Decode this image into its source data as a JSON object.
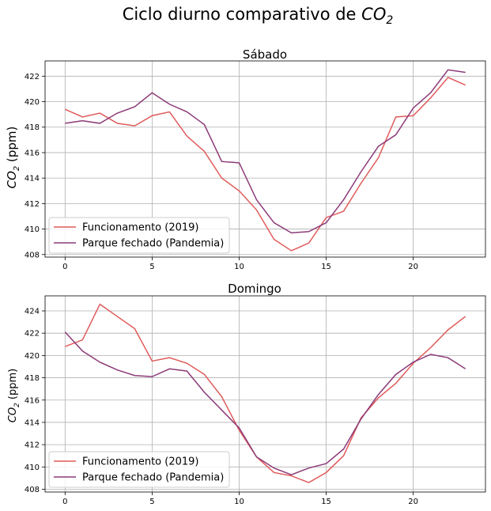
{
  "figure": {
    "title_main": "Ciclo diurno comparativo de ",
    "title_species": "CO",
    "title_species_sub": "2"
  },
  "colors": {
    "funcionamento": "#e05a5a",
    "pandemia": "#8c3a78"
  },
  "chart_data": [
    {
      "type": "line",
      "title": "Sábado",
      "ylabel": {
        "species": "CO",
        "sub": "2",
        "unit": " (ppm)"
      },
      "x": [
        0,
        1,
        2,
        3,
        4,
        5,
        6,
        7,
        8,
        9,
        10,
        11,
        12,
        13,
        14,
        15,
        16,
        17,
        18,
        19,
        20,
        21,
        22,
        23
      ],
      "xlim": [
        -1.15,
        24.15
      ],
      "ylim": [
        407.8,
        423.2
      ],
      "xticks": [
        0,
        5,
        10,
        15,
        20
      ],
      "yticks": [
        408,
        410,
        412,
        414,
        416,
        418,
        420,
        422
      ],
      "grid": true,
      "legend_position": "lower-left",
      "series": [
        {
          "name": "Funcionamento (2019)",
          "color_key": "funcionamento",
          "values": [
            419.4,
            418.8,
            419.1,
            418.3,
            418.1,
            418.9,
            419.2,
            417.3,
            416.1,
            414.0,
            413.0,
            411.5,
            409.2,
            408.3,
            408.9,
            410.9,
            411.4,
            413.6,
            415.6,
            418.8,
            418.9,
            420.3,
            421.9,
            421.3
          ]
        },
        {
          "name": "Parque fechado (Pandemia)",
          "color_key": "pandemia",
          "values": [
            418.3,
            418.5,
            418.3,
            419.1,
            419.6,
            420.7,
            419.8,
            419.2,
            418.2,
            415.3,
            415.2,
            412.3,
            410.5,
            409.7,
            409.8,
            410.5,
            412.3,
            414.5,
            416.5,
            417.4,
            419.5,
            420.7,
            422.5,
            422.3
          ]
        }
      ]
    },
    {
      "type": "line",
      "title": "Domingo",
      "ylabel": {
        "species": "CO",
        "sub": "2",
        "unit": " (ppm)"
      },
      "x": [
        0,
        1,
        2,
        3,
        4,
        5,
        6,
        7,
        8,
        9,
        10,
        11,
        12,
        13,
        14,
        15,
        16,
        17,
        18,
        19,
        20,
        21,
        22,
        23
      ],
      "xlim": [
        -1.15,
        24.15
      ],
      "ylim": [
        407.75,
        425.35
      ],
      "xticks": [
        0,
        5,
        10,
        15,
        20
      ],
      "yticks": [
        408,
        410,
        412,
        414,
        416,
        418,
        420,
        422,
        424
      ],
      "grid": true,
      "legend_position": "lower-left",
      "series": [
        {
          "name": "Funcionamento (2019)",
          "color_key": "funcionamento",
          "values": [
            420.8,
            421.4,
            424.6,
            423.5,
            422.4,
            419.5,
            419.8,
            419.3,
            418.3,
            416.3,
            413.3,
            410.9,
            409.5,
            409.2,
            408.6,
            409.5,
            411.0,
            414.4,
            416.2,
            417.5,
            419.3,
            420.7,
            422.3,
            423.5
          ]
        },
        {
          "name": "Parque fechado (Pandemia)",
          "color_key": "pandemia",
          "values": [
            422.1,
            420.4,
            419.4,
            418.7,
            418.2,
            418.1,
            418.8,
            418.6,
            416.7,
            415.1,
            413.5,
            410.9,
            409.9,
            409.3,
            409.9,
            410.3,
            411.6,
            414.3,
            416.5,
            418.3,
            419.4,
            420.1,
            419.8,
            418.8
          ]
        }
      ]
    }
  ]
}
